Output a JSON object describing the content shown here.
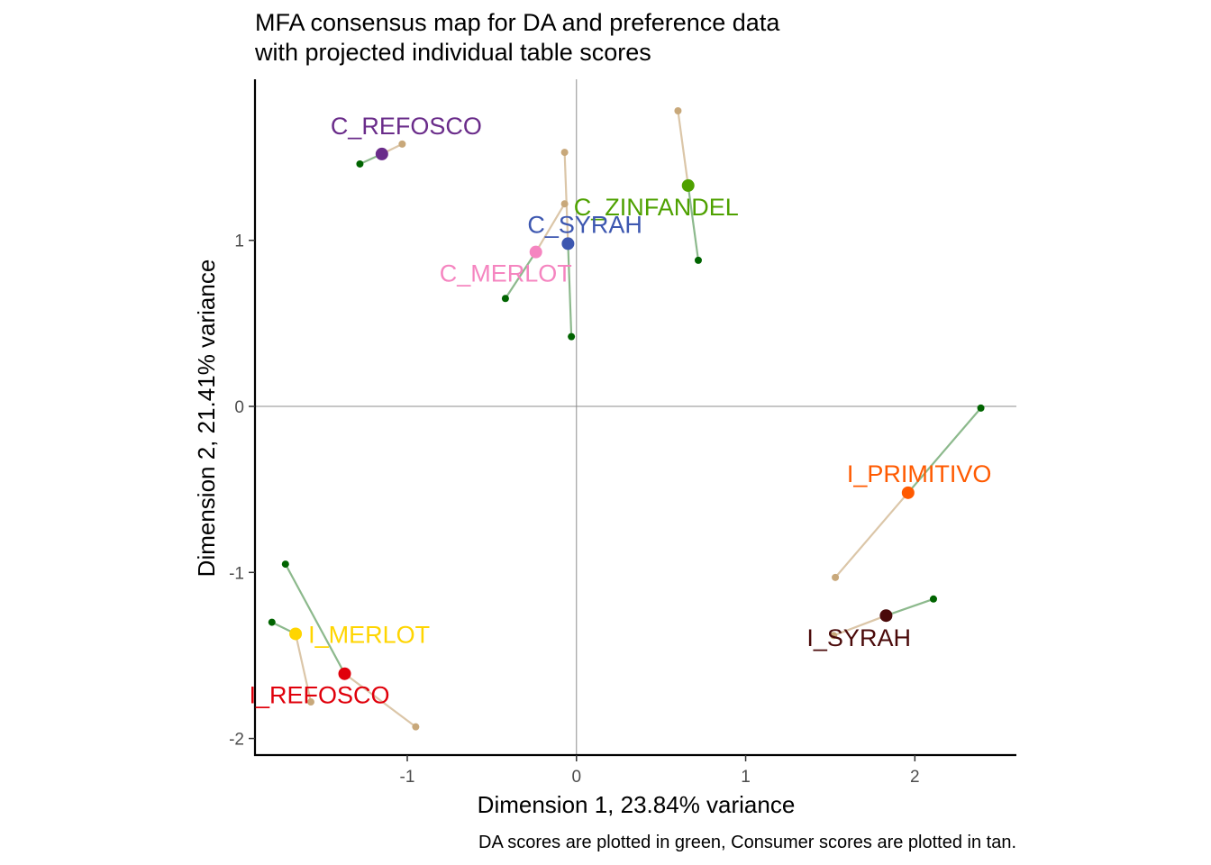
{
  "chart_data": {
    "type": "scatter",
    "title_lines": [
      "MFA consensus map for DA and preference data",
      "with projected individual table scores"
    ],
    "xlabel": "Dimension 1, 23.84% variance",
    "ylabel": "Dimension 2, 21.41% variance",
    "caption": "DA scores are plotted in green, Consumer scores are plotted in tan.",
    "xlim": [
      -1.9,
      2.6
    ],
    "ylim": [
      -2.1,
      1.97
    ],
    "xticks": [
      -1,
      0,
      1,
      2
    ],
    "yticks": [
      -2,
      -1,
      0,
      1
    ],
    "xtick_labels": [
      "-1",
      "0",
      "1",
      "2"
    ],
    "ytick_labels": [
      "-2",
      "-1",
      "0",
      "1"
    ],
    "reference_lines": {
      "x": 0,
      "y": 0
    },
    "grid": false,
    "partial_colors": {
      "DA": "#006400",
      "Consumer": "#c8a87a"
    },
    "points": [
      {
        "label": "C_REFOSCO",
        "x": -1.15,
        "y": 1.52,
        "color": "#6a2c8a",
        "da": [
          -1.28,
          1.46
        ],
        "consumer": [
          -1.03,
          1.58
        ]
      },
      {
        "label": "C_ZINFANDEL",
        "x": 0.66,
        "y": 1.33,
        "color": "#4ea100",
        "da": [
          0.72,
          0.88
        ],
        "consumer": [
          0.6,
          1.78
        ]
      },
      {
        "label": "C_SYRAH",
        "x": -0.05,
        "y": 0.98,
        "color": "#3d57b0",
        "da": [
          -0.03,
          0.42
        ],
        "consumer": [
          -0.07,
          1.53
        ]
      },
      {
        "label": "C_MERLOT",
        "x": -0.24,
        "y": 0.93,
        "color": "#f585c0",
        "da": [
          -0.42,
          0.65
        ],
        "consumer": [
          -0.07,
          1.22
        ]
      },
      {
        "label": "I_PRIMITIVO",
        "x": 1.96,
        "y": -0.52,
        "color": "#ff5a00",
        "da": [
          2.39,
          -0.01
        ],
        "consumer": [
          1.53,
          -1.03
        ]
      },
      {
        "label": "I_SYRAH",
        "x": 1.83,
        "y": -1.26,
        "color": "#4a0a0a",
        "da": [
          2.11,
          -1.16
        ],
        "consumer": [
          1.52,
          -1.38
        ]
      },
      {
        "label": "I_MERLOT",
        "x": -1.66,
        "y": -1.37,
        "color": "#ffd500",
        "da": [
          -1.8,
          -1.3
        ],
        "consumer": [
          -1.57,
          -1.78
        ]
      },
      {
        "label": "I_REFOSCO",
        "x": -1.37,
        "y": -1.61,
        "color": "#e0000b",
        "da": [
          -1.72,
          -0.95
        ],
        "consumer": [
          -0.95,
          -1.93
        ]
      }
    ]
  }
}
